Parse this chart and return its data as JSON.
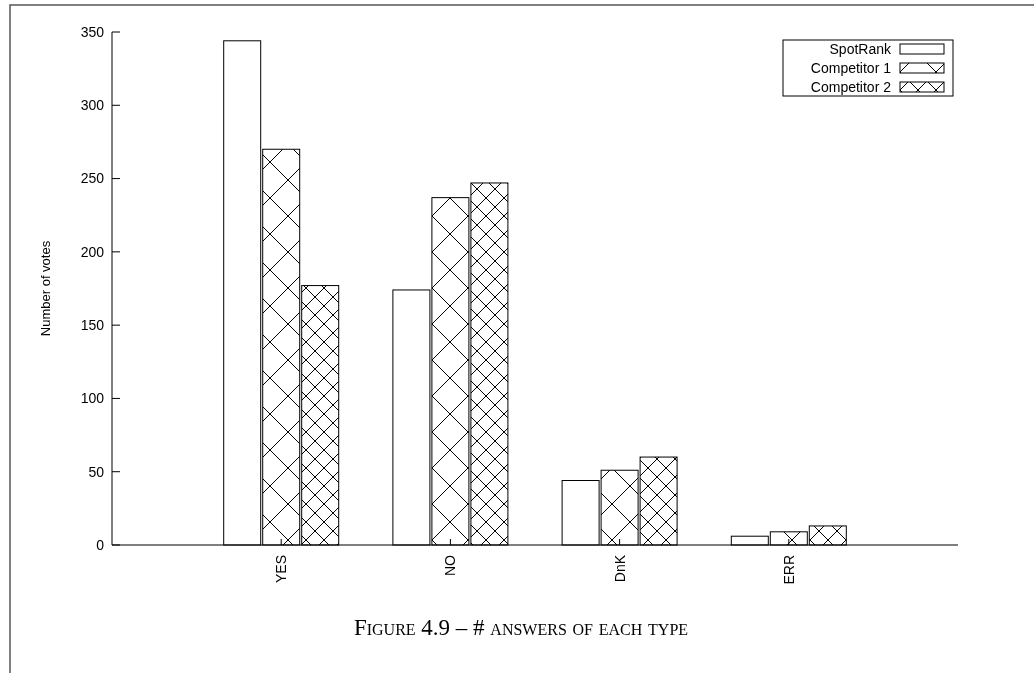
{
  "chart_data": {
    "type": "bar",
    "title": "Figure 4.9 – # answers of each type",
    "ylabel": "Number of votes",
    "categories": [
      "YES",
      "NO",
      "DnK",
      "ERR"
    ],
    "series": [
      {
        "name": "SpotRank",
        "color": "#ffffff",
        "values": [
          344,
          174,
          44,
          6
        ]
      },
      {
        "name": "Competitor 1",
        "color": "#000000",
        "values": [
          270,
          237,
          51,
          9
        ]
      },
      {
        "name": "Competitor 2",
        "color": "#000000",
        "values": [
          177,
          247,
          60,
          13
        ]
      }
    ],
    "ylim": [
      0,
      350
    ],
    "yticks": [
      0,
      50,
      100,
      150,
      200,
      250,
      300,
      350
    ],
    "grid": false,
    "legend": "top right"
  }
}
